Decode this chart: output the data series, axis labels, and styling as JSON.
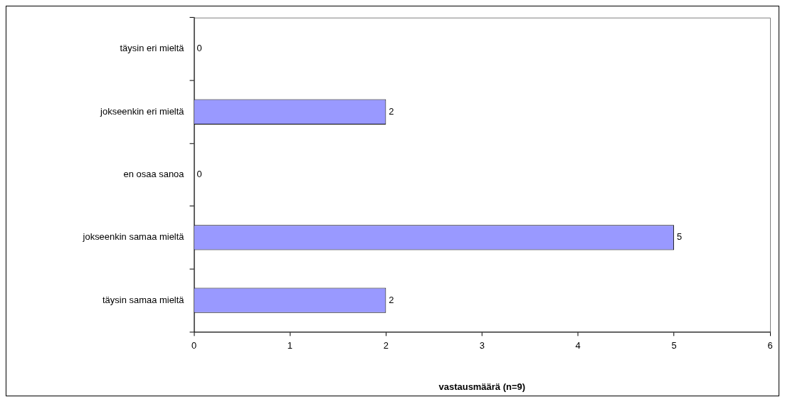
{
  "chart_data": {
    "type": "bar",
    "orientation": "horizontal",
    "categories": [
      "täysin eri mieltä",
      "jokseenkin eri mieltä",
      "en osaa sanoa",
      "jokseenkin samaa mieltä",
      "täysin samaa mieltä"
    ],
    "values": [
      0,
      2,
      0,
      5,
      2
    ],
    "color": "#9999ff",
    "xlabel": "vastausmäärä (n=9)",
    "xlim": [
      0,
      6
    ],
    "xticks": [
      0,
      1,
      2,
      3,
      4,
      5,
      6
    ],
    "data_labels": true,
    "grid": false,
    "legend": false
  }
}
